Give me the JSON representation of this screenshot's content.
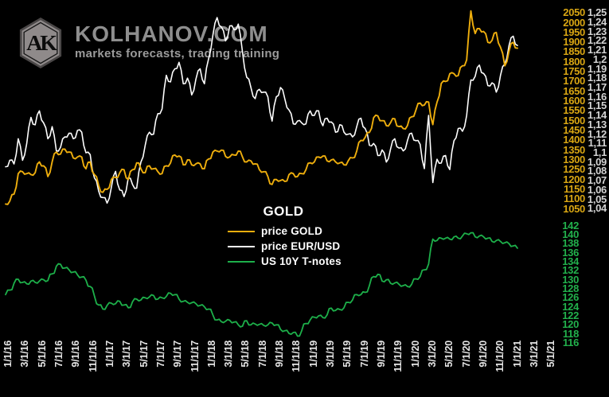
{
  "header": {
    "logo_monogram": "AK",
    "title": "KOLHANOV.COM",
    "subtitle": "markets forecasts, trading training"
  },
  "legend": {
    "title": "GOLD",
    "items": [
      {
        "label": "price GOLD",
        "color": "#eeae0d"
      },
      {
        "label": "price EUR/USD",
        "color": "#fdfdfd"
      },
      {
        "label": "US 10Y T-notes",
        "color": "#1db04a"
      }
    ]
  },
  "colors": {
    "background": "#000000",
    "gold_line": "#eeae0d",
    "gold_axis": "#d9a613",
    "eurusd_line": "#fdfdfd",
    "eurusd_axis": "#d4d4d4",
    "tnotes_line": "#1db04a",
    "tnotes_axis": "#22b14c",
    "x_labels": "#e6e6e6",
    "brand_gray": "#8e8e8e"
  },
  "chart_data": {
    "type": "line",
    "title": "GOLD",
    "legend_entries": [
      "price GOLD",
      "price EUR/USD",
      "US 10Y T-notes"
    ],
    "legend_position": "center",
    "grid": false,
    "sampling": "semi-monthly (1st and 15th of each month), 1/1/16 through 1/15/21",
    "x_tick_labels": [
      "1/1/16",
      "3/1/16",
      "5/1/16",
      "7/1/16",
      "9/1/16",
      "11/1/16",
      "1/1/17",
      "3/1/17",
      "5/1/17",
      "7/1/17",
      "9/1/17",
      "11/1/17",
      "1/1/18",
      "3/1/18",
      "5/1/18",
      "7/1/18",
      "9/1/18",
      "11/1/18",
      "1/1/19",
      "3/1/19",
      "5/1/19",
      "7/1/19",
      "9/1/19",
      "11/1/19",
      "1/1/20",
      "3/1/20",
      "5/1/20",
      "7/1/20",
      "9/1/20",
      "11/1/20",
      "1/1/21",
      "3/1/21",
      "5/1/21"
    ],
    "right_axis_gold_ticks": [
      "2050",
      "2000",
      "1950",
      "1900",
      "1850",
      "1800",
      "1750",
      "1700",
      "1650",
      "1600",
      "1550",
      "1500",
      "1450",
      "1400",
      "1350",
      "1300",
      "1250",
      "1200",
      "1150",
      "1100",
      "1050"
    ],
    "right_axis_eurusd_ticks": [
      "1,25",
      "1,24",
      "1,23",
      "1,22",
      "1,21",
      "1,2",
      "1,19",
      "1,18",
      "1,17",
      "1,16",
      "1,15",
      "1,14",
      "1,13",
      "1,12",
      "1,11",
      "1,1",
      "1,09",
      "1,08",
      "1,07",
      "1,06",
      "1,05",
      "1,04"
    ],
    "right_axis_tnotes_ticks": [
      "142",
      "140",
      "138",
      "136",
      "134",
      "132",
      "130",
      "128",
      "126",
      "124",
      "122",
      "120",
      "118",
      "116"
    ],
    "axes": {
      "gold": {
        "min": 1050,
        "max": 2050,
        "step": 50
      },
      "eurusd": {
        "min": 1.04,
        "max": 1.25,
        "step": 0.01
      },
      "tnotes": {
        "min": 116,
        "max": 142,
        "step": 2
      }
    },
    "series": [
      {
        "name": "price EUR/USD",
        "axis": "eurusd",
        "color": "#fdfdfd",
        "width": 1.6,
        "values": [
          1.085,
          1.092,
          1.088,
          1.115,
          1.092,
          1.11,
          1.138,
          1.13,
          1.145,
          1.132,
          1.115,
          1.128,
          1.102,
          1.106,
          1.117,
          1.121,
          1.115,
          1.124,
          1.122,
          1.1,
          1.098,
          1.073,
          1.059,
          1.052,
          1.046,
          1.063,
          1.08,
          1.06,
          1.053,
          1.073,
          1.066,
          1.062,
          1.09,
          1.108,
          1.122,
          1.12,
          1.142,
          1.147,
          1.183,
          1.176,
          1.19,
          1.197,
          1.174,
          1.18,
          1.162,
          1.179,
          1.19,
          1.174,
          1.201,
          1.226,
          1.245,
          1.235,
          1.22,
          1.236,
          1.232,
          1.238,
          1.208,
          1.181,
          1.17,
          1.158,
          1.168,
          1.165,
          1.16,
          1.134,
          1.16,
          1.17,
          1.158,
          1.146,
          1.131,
          1.134,
          1.132,
          1.131,
          1.145,
          1.14,
          1.145,
          1.129,
          1.137,
          1.133,
          1.122,
          1.13,
          1.122,
          1.12,
          1.117,
          1.128,
          1.137,
          1.126,
          1.108,
          1.11,
          1.097,
          1.103,
          1.09,
          1.104,
          1.115,
          1.105,
          1.102,
          1.113,
          1.121,
          1.113,
          1.109,
          1.083,
          1.14,
          1.068,
          1.093,
          1.089,
          1.097,
          1.082,
          1.113,
          1.126,
          1.123,
          1.14,
          1.178,
          1.182,
          1.194,
          1.185,
          1.172,
          1.175,
          1.165,
          1.183,
          1.195,
          1.215,
          1.225,
          1.215
        ]
      },
      {
        "name": "US 10Y T-notes",
        "axis": "tnotes",
        "color": "#1db04a",
        "width": 1.8,
        "values": [
          126.6,
          127.6,
          129.1,
          130.0,
          129.3,
          129.0,
          129.6,
          129.3,
          129.6,
          129.9,
          129.7,
          131.2,
          132.9,
          133.3,
          132.5,
          132.1,
          131.6,
          131.0,
          130.5,
          129.8,
          128.4,
          126.3,
          124.3,
          123.4,
          124.2,
          124.7,
          124.6,
          125.1,
          124.3,
          123.7,
          125.0,
          125.6,
          125.4,
          125.9,
          126.1,
          126.4,
          125.6,
          125.9,
          126.2,
          126.9,
          126.6,
          125.6,
          125.1,
          124.9,
          124.8,
          124.6,
          124.2,
          123.9,
          123.4,
          122.1,
          121.0,
          120.6,
          120.7,
          120.9,
          120.5,
          119.9,
          119.6,
          120.8,
          119.9,
          120.1,
          120.0,
          119.8,
          119.9,
          120.3,
          119.9,
          118.9,
          118.6,
          118.0,
          118.2,
          117.4,
          118.6,
          120.2,
          121.0,
          121.6,
          121.9,
          121.5,
          122.1,
          123.6,
          123.1,
          123.3,
          123.7,
          124.9,
          125.4,
          126.6,
          126.6,
          127.1,
          128.6,
          130.6,
          131.1,
          129.6,
          129.9,
          129.1,
          129.2,
          128.9,
          128.6,
          128.4,
          128.9,
          130.1,
          130.6,
          132.1,
          133.4,
          138.9,
          138.6,
          139.1,
          139.1,
          138.9,
          139.4,
          139.1,
          139.6,
          140.1,
          140.3,
          139.4,
          139.6,
          139.4,
          139.1,
          138.4,
          138.6,
          138.4,
          138.1,
          137.9,
          137.4,
          136.9
        ]
      },
      {
        "name": "price GOLD",
        "axis": "gold",
        "color": "#eeae0d",
        "width": 1.9,
        "values": [
          1075,
          1090,
          1125,
          1230,
          1240,
          1230,
          1225,
          1235,
          1290,
          1270,
          1215,
          1290,
          1340,
          1330,
          1355,
          1340,
          1310,
          1315,
          1315,
          1255,
          1290,
          1225,
          1170,
          1135,
          1150,
          1200,
          1210,
          1235,
          1250,
          1200,
          1250,
          1285,
          1255,
          1235,
          1270,
          1255,
          1240,
          1230,
          1270,
          1285,
          1325,
          1320,
          1275,
          1300,
          1275,
          1280,
          1280,
          1255,
          1305,
          1340,
          1345,
          1350,
          1318,
          1315,
          1325,
          1345,
          1315,
          1290,
          1295,
          1280,
          1250,
          1240,
          1215,
          1175,
          1200,
          1195,
          1190,
          1225,
          1230,
          1215,
          1230,
          1250,
          1285,
          1290,
          1315,
          1320,
          1295,
          1300,
          1290,
          1285,
          1275,
          1295,
          1310,
          1345,
          1400,
          1415,
          1440,
          1515,
          1525,
          1500,
          1475,
          1490,
          1510,
          1470,
          1460,
          1475,
          1520,
          1555,
          1590,
          1580,
          1595,
          1480,
          1595,
          1690,
          1700,
          1740,
          1740,
          1730,
          1780,
          1810,
          2060,
          1945,
          1970,
          1955,
          1900,
          1910,
          1950,
          1875,
          1780,
          1855,
          1900,
          1870
        ]
      }
    ]
  }
}
